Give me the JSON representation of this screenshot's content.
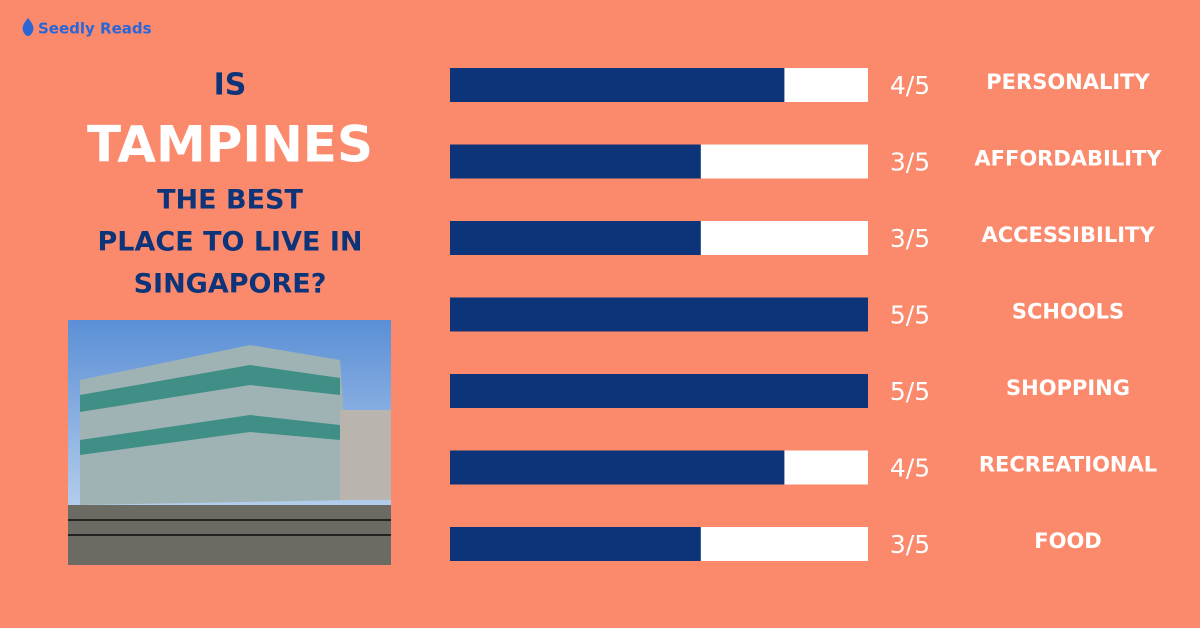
{
  "brand": "Seedly Reads",
  "headline": [
    "IS",
    "TAMPINES",
    "THE BEST",
    "PLACE TO LIVE IN",
    "SINGAPORE?"
  ],
  "chart_data": {
    "type": "bar",
    "orientation": "horizontal",
    "categories": [
      "PERSONALITY",
      "AFFORDABILITY",
      "ACCESSIBILITY",
      "SCHOOLS",
      "SHOPPING",
      "RECREATIONAL",
      "FOOD"
    ],
    "values": [
      4,
      3,
      3,
      5,
      5,
      4,
      3
    ],
    "value_labels": [
      "4/5",
      "3/5",
      "3/5",
      "5/5",
      "5/5",
      "4/5",
      "3/5"
    ],
    "xlim": [
      0,
      5
    ],
    "color": "#0d3478",
    "track_color": "#ffffff"
  }
}
